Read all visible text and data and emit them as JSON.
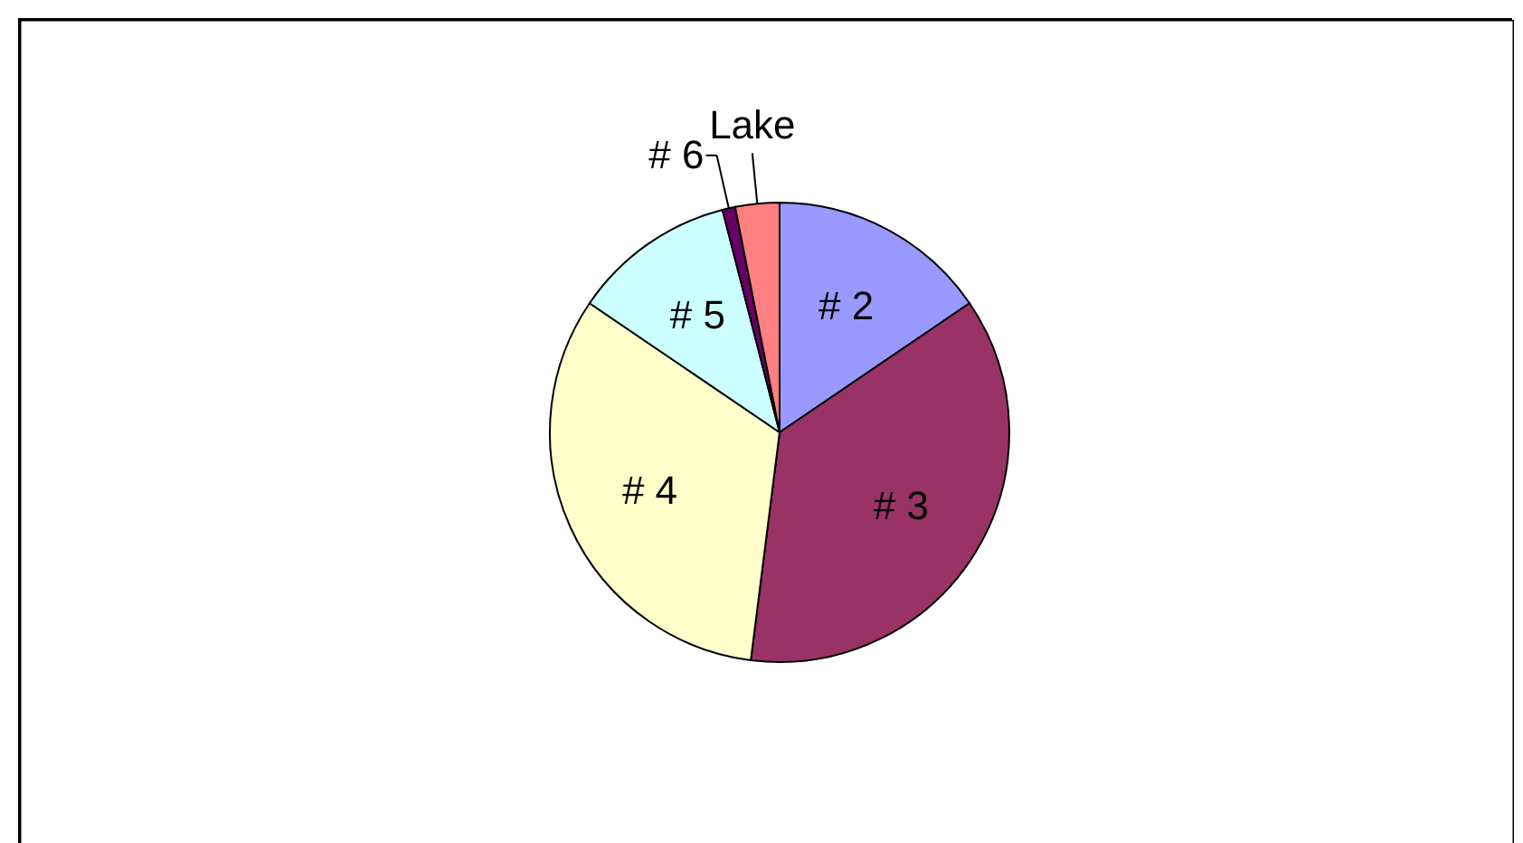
{
  "chart_data": {
    "type": "pie",
    "categories": [
      "# 2",
      "# 3",
      "# 4",
      "# 5",
      "# 6",
      "Lake"
    ],
    "values": [
      15.5,
      36.5,
      32.5,
      11.5,
      0.9,
      3.1
    ],
    "colors": [
      "#9999ff",
      "#993366",
      "#ffffcc",
      "#ccffff",
      "#660066",
      "#ff8080"
    ]
  }
}
